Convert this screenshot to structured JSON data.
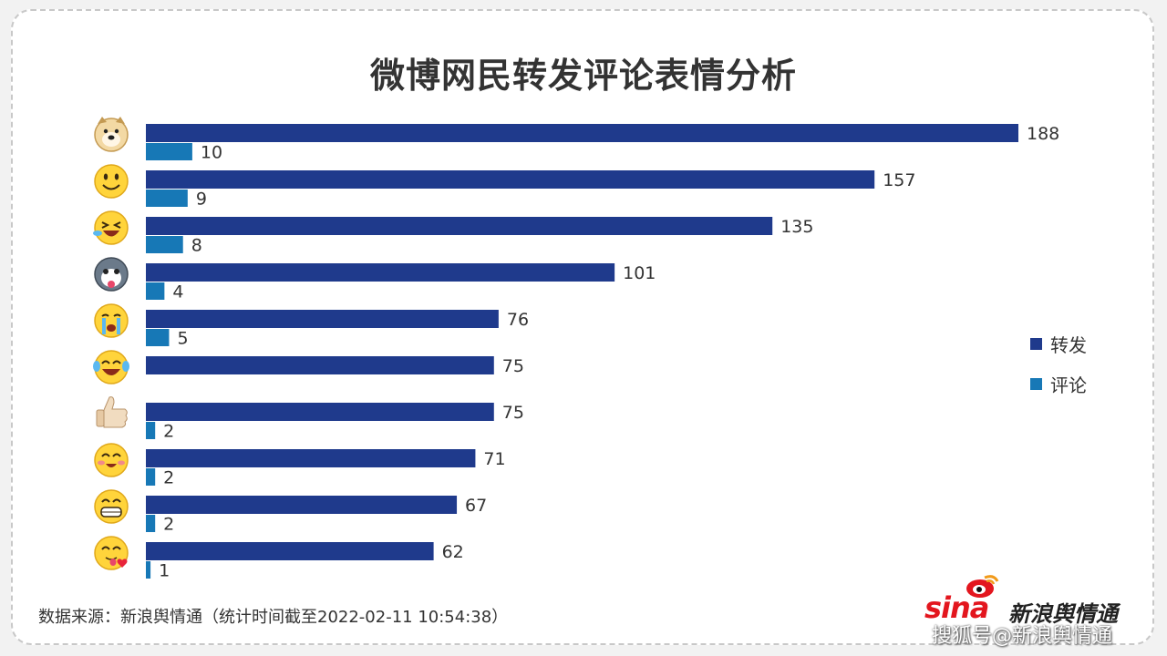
{
  "chart_data": {
    "type": "bar",
    "orientation": "horizontal",
    "title": "微博网民转发评论表情分析",
    "categories": [
      "doge-emoji",
      "smile-emoji",
      "laugh-cry-emoji",
      "husky-emoji",
      "crying-emoji",
      "tears-of-joy-emoji",
      "thumbs-up-emoji",
      "shy-smile-emoji",
      "grin-emoji",
      "tongue-heart-emoji"
    ],
    "series": [
      {
        "name": "转发",
        "color": "#1f3a8c",
        "values": [
          188,
          157,
          135,
          101,
          76,
          75,
          75,
          71,
          67,
          62
        ]
      },
      {
        "name": "评论",
        "color": "#1778b6",
        "values": [
          10,
          9,
          8,
          4,
          5,
          null,
          2,
          2,
          2,
          1
        ]
      }
    ],
    "xlim": [
      0,
      188
    ],
    "grid": false,
    "legend": "right"
  },
  "source_text": "数据来源：新浪舆情通（统计时间截至2022-02-11 10:54:38）",
  "logo": {
    "sina": "sina",
    "brand": "新浪舆情通"
  },
  "watermark": "搜狐号@新浪舆情通"
}
